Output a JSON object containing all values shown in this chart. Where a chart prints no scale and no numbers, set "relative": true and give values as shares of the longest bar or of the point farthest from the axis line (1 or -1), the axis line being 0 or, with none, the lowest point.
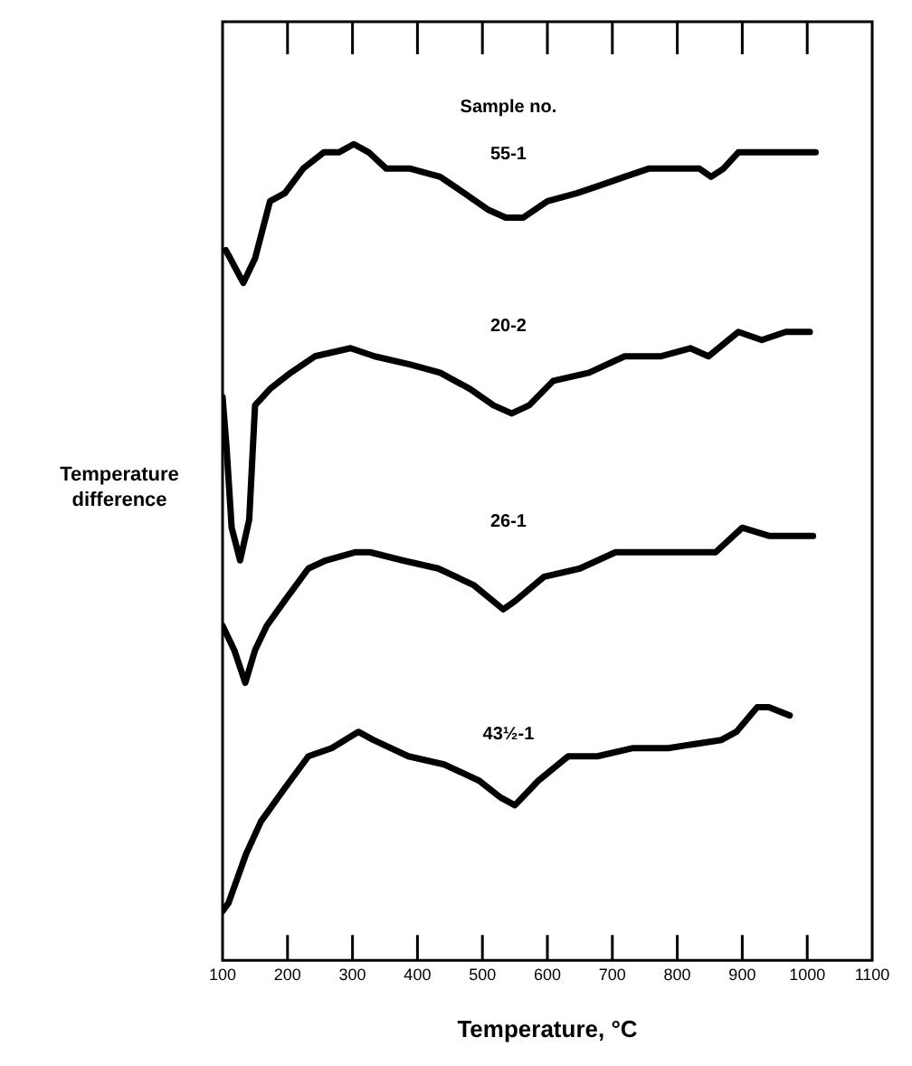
{
  "chart_data": {
    "type": "line",
    "xlabel": "Temperature, °C",
    "ylabel": "Temperature difference",
    "relative": true,
    "xlim": [
      100,
      1100
    ],
    "xticks": [
      100,
      200,
      300,
      400,
      500,
      600,
      700,
      800,
      900,
      1000,
      1100
    ],
    "grid": false,
    "legend": false,
    "marker": "none",
    "line_style": "solid",
    "annotations": [
      "Sample no."
    ],
    "series": [
      {
        "name": "55-1",
        "color": "#000000",
        "x": [
          105,
          132,
          150,
          173,
          196,
          224,
          256,
          279,
          302,
          325,
          352,
          389,
          435,
          472,
          508,
          536,
          563,
          600,
          646,
          683,
          719,
          756,
          802,
          834,
          852,
          871,
          894,
          930,
          967,
          1013
        ],
        "values": [
          0.87,
          0.83,
          0.86,
          0.93,
          0.94,
          0.97,
          0.99,
          0.99,
          1.0,
          0.99,
          0.97,
          0.97,
          0.96,
          0.94,
          0.92,
          0.91,
          0.91,
          0.93,
          0.94,
          0.95,
          0.96,
          0.97,
          0.97,
          0.97,
          0.96,
          0.97,
          0.99,
          0.99,
          0.99,
          0.99
        ]
      },
      {
        "name": "20-2",
        "color": "#000000",
        "x": [
          100,
          106,
          114,
          127,
          141,
          150,
          173,
          205,
          242,
          297,
          334,
          389,
          435,
          481,
          517,
          545,
          572,
          609,
          664,
          719,
          774,
          820,
          848,
          894,
          930,
          967,
          1004
        ],
        "values": [
          0.69,
          0.63,
          0.53,
          0.49,
          0.54,
          0.68,
          0.7,
          0.72,
          0.74,
          0.75,
          0.74,
          0.73,
          0.72,
          0.7,
          0.68,
          0.67,
          0.68,
          0.71,
          0.72,
          0.74,
          0.74,
          0.75,
          0.74,
          0.77,
          0.76,
          0.77,
          0.77
        ]
      },
      {
        "name": "26-1",
        "color": "#000000",
        "x": [
          100,
          118,
          135,
          150,
          168,
          195,
          232,
          259,
          305,
          327,
          377,
          432,
          486,
          532,
          550,
          595,
          650,
          705,
          759,
          814,
          859,
          900,
          941,
          1009
        ],
        "values": [
          0.41,
          0.38,
          0.34,
          0.38,
          0.41,
          0.44,
          0.48,
          0.49,
          0.5,
          0.5,
          0.49,
          0.48,
          0.46,
          0.43,
          0.44,
          0.47,
          0.48,
          0.5,
          0.5,
          0.5,
          0.5,
          0.53,
          0.52,
          0.52
        ]
      },
      {
        "name": "43½-1",
        "color": "#000000",
        "x": [
          100,
          109,
          136,
          159,
          195,
          232,
          268,
          309,
          332,
          386,
          441,
          495,
          527,
          550,
          586,
          632,
          677,
          732,
          786,
          868,
          891,
          923,
          941,
          973
        ],
        "values": [
          0.06,
          0.07,
          0.13,
          0.17,
          0.21,
          0.25,
          0.26,
          0.28,
          0.27,
          0.25,
          0.24,
          0.22,
          0.2,
          0.19,
          0.22,
          0.25,
          0.25,
          0.26,
          0.26,
          0.27,
          0.28,
          0.31,
          0.31,
          0.3
        ]
      }
    ]
  }
}
